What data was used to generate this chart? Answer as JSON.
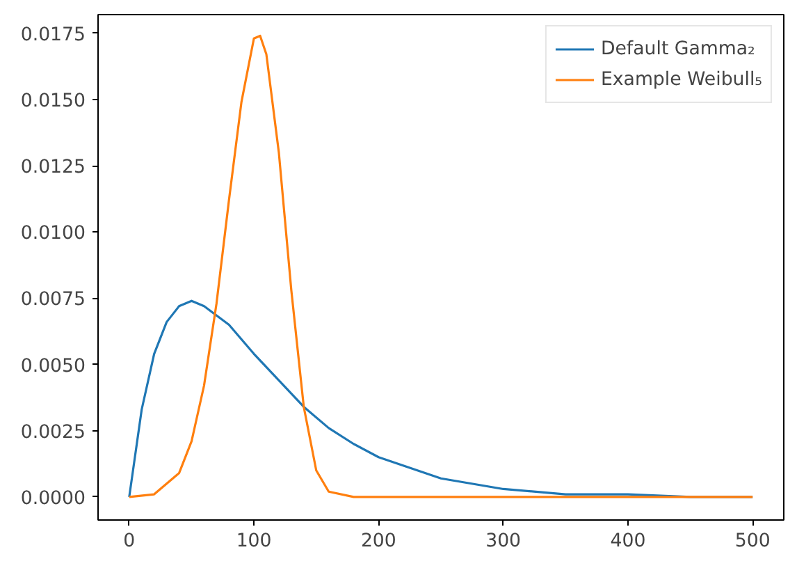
{
  "chart_data": {
    "type": "line",
    "xlim": [
      -25,
      525
    ],
    "xticks": [
      0,
      100,
      200,
      300,
      400,
      500
    ],
    "ylim": [
      -0.00087,
      0.0182
    ],
    "yticks": [
      {
        "value": 0,
        "label": "0.0000"
      },
      {
        "value": 0.0025,
        "label": "0.0025"
      },
      {
        "value": 0.005,
        "label": "0.0050"
      },
      {
        "value": 0.0075,
        "label": "0.0075"
      },
      {
        "value": 0.01,
        "label": "0.0100"
      },
      {
        "value": 0.0125,
        "label": "0.0125"
      },
      {
        "value": 0.015,
        "label": "0.0150"
      },
      {
        "value": 0.0175,
        "label": "0.0175"
      }
    ],
    "grid": false,
    "legend": "top right",
    "line_style": "solid",
    "marker": "none",
    "series": [
      {
        "name": "Default Gamma₂",
        "color": "#1f77b4",
        "x": [
          0,
          10,
          20,
          30,
          40,
          50,
          60,
          80,
          100,
          120,
          140,
          160,
          180,
          200,
          250,
          300,
          350,
          400,
          450,
          500
        ],
        "values": [
          0,
          0.0033,
          0.0054,
          0.0066,
          0.0072,
          0.0074,
          0.0072,
          0.0065,
          0.0054,
          0.0044,
          0.0034,
          0.0026,
          0.002,
          0.0015,
          0.0007,
          0.0003,
          0.0001,
          0.0001,
          0,
          0
        ]
      },
      {
        "name": "Example Weibull₅",
        "color": "#ff7f0e",
        "x": [
          0,
          20,
          40,
          50,
          60,
          70,
          80,
          90,
          100,
          105,
          110,
          120,
          130,
          140,
          150,
          160,
          180,
          250,
          500
        ],
        "values": [
          0,
          0.0001,
          0.0009,
          0.0021,
          0.0042,
          0.0073,
          0.0112,
          0.0149,
          0.0173,
          0.0174,
          0.0167,
          0.013,
          0.0078,
          0.0034,
          0.001,
          0.0002,
          0,
          0,
          0
        ]
      }
    ]
  }
}
